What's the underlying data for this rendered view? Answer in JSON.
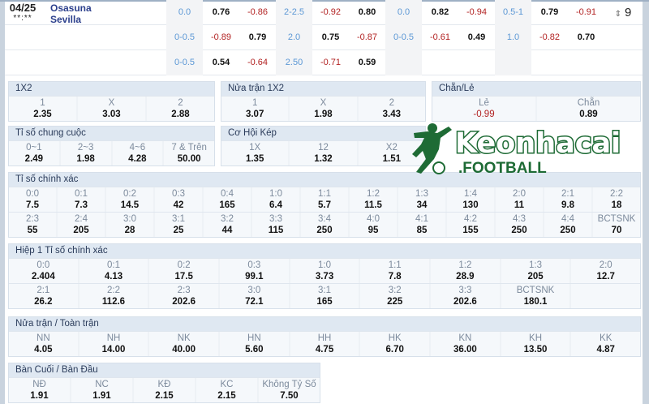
{
  "match": {
    "date": "04/25",
    "time": "**:**",
    "home": "Osasuna",
    "away": "Sevilla",
    "more_count": "9",
    "rows": [
      [
        {
          "v": "0.0",
          "t": "hc"
        },
        {
          "v": "0.76",
          "t": "pos"
        },
        {
          "v": "-0.86",
          "t": "neg"
        },
        {
          "v": "2-2.5",
          "t": "hc"
        },
        {
          "v": "-0.92",
          "t": "neg"
        },
        {
          "v": "0.80",
          "t": "pos"
        },
        {
          "v": "0.0",
          "t": "hc"
        },
        {
          "v": "0.82",
          "t": "pos"
        },
        {
          "v": "-0.94",
          "t": "neg"
        },
        {
          "v": "0.5-1",
          "t": "hc"
        },
        {
          "v": "0.79",
          "t": "pos"
        },
        {
          "v": "-0.91",
          "t": "neg"
        }
      ],
      [
        {
          "v": "0-0.5",
          "t": "hc"
        },
        {
          "v": "-0.89",
          "t": "neg"
        },
        {
          "v": "0.79",
          "t": "pos"
        },
        {
          "v": "2.0",
          "t": "hc"
        },
        {
          "v": "0.75",
          "t": "pos"
        },
        {
          "v": "-0.87",
          "t": "neg"
        },
        {
          "v": "0-0.5",
          "t": "hc"
        },
        {
          "v": "-0.61",
          "t": "neg"
        },
        {
          "v": "0.49",
          "t": "pos"
        },
        {
          "v": "1.0",
          "t": "hc"
        },
        {
          "v": "-0.82",
          "t": "neg"
        },
        {
          "v": "0.70",
          "t": "pos"
        }
      ],
      [
        {
          "v": "0-0.5",
          "t": "hc"
        },
        {
          "v": "0.54",
          "t": "pos"
        },
        {
          "v": "-0.64",
          "t": "neg"
        },
        {
          "v": "2.50",
          "t": "hc"
        },
        {
          "v": "-0.71",
          "t": "neg"
        },
        {
          "v": "0.59",
          "t": "pos"
        },
        {
          "v": "",
          "t": "hc"
        },
        {
          "v": "",
          "t": "pos"
        },
        {
          "v": "",
          "t": "pos"
        },
        {
          "v": "",
          "t": "hc"
        },
        {
          "v": "",
          "t": "pos"
        },
        {
          "v": "",
          "t": "pos"
        }
      ]
    ]
  },
  "sections": [
    {
      "id": "1x2",
      "title": "1X2",
      "rows": [
        [
          {
            "l": "1",
            "v": "2.35"
          },
          {
            "l": "X",
            "v": "3.03"
          },
          {
            "l": "2",
            "v": "2.88"
          }
        ]
      ]
    },
    {
      "id": "half-1x2",
      "title": "Nửa trận 1X2",
      "rows": [
        [
          {
            "l": "1",
            "v": "3.07"
          },
          {
            "l": "X",
            "v": "1.98"
          },
          {
            "l": "2",
            "v": "3.43"
          }
        ]
      ]
    },
    {
      "id": "odd-even",
      "title": "Chẵn/Lẻ",
      "rows": [
        [
          {
            "l": "Lẻ",
            "v": "-0.99",
            "neg": true
          },
          {
            "l": "Chẵn",
            "v": "0.89"
          }
        ]
      ]
    },
    {
      "id": "total-goals",
      "title": "Tỉ số chung cuộc",
      "rows": [
        [
          {
            "l": "0~1",
            "v": "2.49"
          },
          {
            "l": "2~3",
            "v": "1.98"
          },
          {
            "l": "4~6",
            "v": "4.28"
          },
          {
            "l": "7 & Trên",
            "v": "50.00"
          }
        ]
      ]
    },
    {
      "id": "double-chance",
      "title": "Cơ Hội Kép",
      "rows": [
        [
          {
            "l": "1X",
            "v": "1.35"
          },
          {
            "l": "12",
            "v": "1.32"
          },
          {
            "l": "X2",
            "v": "1.51"
          }
        ]
      ]
    },
    {
      "id": "correct-score",
      "title": "Tỉ số chính xác",
      "rows": [
        [
          {
            "l": "0:0",
            "v": "7.5"
          },
          {
            "l": "0:1",
            "v": "7.3"
          },
          {
            "l": "0:2",
            "v": "14.5"
          },
          {
            "l": "0:3",
            "v": "42"
          },
          {
            "l": "0:4",
            "v": "165"
          },
          {
            "l": "1:0",
            "v": "6.4"
          },
          {
            "l": "1:1",
            "v": "5.7"
          },
          {
            "l": "1:2",
            "v": "11.5"
          },
          {
            "l": "1:3",
            "v": "34"
          },
          {
            "l": "1:4",
            "v": "130"
          },
          {
            "l": "2:0",
            "v": "11"
          },
          {
            "l": "2:1",
            "v": "9.8"
          },
          {
            "l": "2:2",
            "v": "18"
          }
        ],
        [
          {
            "l": "2:3",
            "v": "55"
          },
          {
            "l": "2:4",
            "v": "205"
          },
          {
            "l": "3:0",
            "v": "28"
          },
          {
            "l": "3:1",
            "v": "25"
          },
          {
            "l": "3:2",
            "v": "44"
          },
          {
            "l": "3:3",
            "v": "115"
          },
          {
            "l": "3:4",
            "v": "250"
          },
          {
            "l": "4:0",
            "v": "95"
          },
          {
            "l": "4:1",
            "v": "85"
          },
          {
            "l": "4:2",
            "v": "155"
          },
          {
            "l": "4:3",
            "v": "250"
          },
          {
            "l": "4:4",
            "v": "250"
          },
          {
            "l": "BCTSNK",
            "v": "70"
          }
        ]
      ]
    },
    {
      "id": "ht-correct-score",
      "title": "Hiệp 1 Tỉ số chính xác",
      "rows": [
        [
          {
            "l": "0:0",
            "v": "2.404"
          },
          {
            "l": "0:1",
            "v": "4.13"
          },
          {
            "l": "0:2",
            "v": "17.5"
          },
          {
            "l": "0:3",
            "v": "99.1"
          },
          {
            "l": "1:0",
            "v": "3.73"
          },
          {
            "l": "1:1",
            "v": "7.8"
          },
          {
            "l": "1:2",
            "v": "28.9"
          },
          {
            "l": "1:3",
            "v": "205"
          },
          {
            "l": "2:0",
            "v": "12.7"
          }
        ],
        [
          {
            "l": "2:1",
            "v": "26.2"
          },
          {
            "l": "2:2",
            "v": "112.6"
          },
          {
            "l": "2:3",
            "v": "202.6"
          },
          {
            "l": "3:0",
            "v": "72.1"
          },
          {
            "l": "3:1",
            "v": "165"
          },
          {
            "l": "3:2",
            "v": "225"
          },
          {
            "l": "3:3",
            "v": "202.6"
          },
          {
            "l": "BCTSNK",
            "v": "180.1"
          },
          {
            "l": "",
            "v": ""
          }
        ]
      ]
    },
    {
      "id": "ht-ft",
      "title": "Nửa trận / Toàn trận",
      "rows": [
        [
          {
            "l": "NN",
            "v": "4.05"
          },
          {
            "l": "NH",
            "v": "14.00"
          },
          {
            "l": "NK",
            "v": "40.00"
          },
          {
            "l": "HN",
            "v": "5.60"
          },
          {
            "l": "HH",
            "v": "4.75"
          },
          {
            "l": "HK",
            "v": "6.70"
          },
          {
            "l": "KN",
            "v": "36.00"
          },
          {
            "l": "KH",
            "v": "13.50"
          },
          {
            "l": "KK",
            "v": "4.87"
          }
        ]
      ]
    },
    {
      "id": "first-last-goal",
      "title": "Bàn Cuối / Bàn Đầu",
      "rows": [
        [
          {
            "l": "NĐ",
            "v": "1.91"
          },
          {
            "l": "NC",
            "v": "1.91"
          },
          {
            "l": "KĐ",
            "v": "2.15"
          },
          {
            "l": "KC",
            "v": "2.15"
          },
          {
            "l": "Không Tỷ Số",
            "v": "7.50"
          }
        ]
      ]
    }
  ],
  "logo": {
    "main": "Keonhacai",
    "sub": ".FOOTBALL",
    "color": "#1e6b35"
  }
}
